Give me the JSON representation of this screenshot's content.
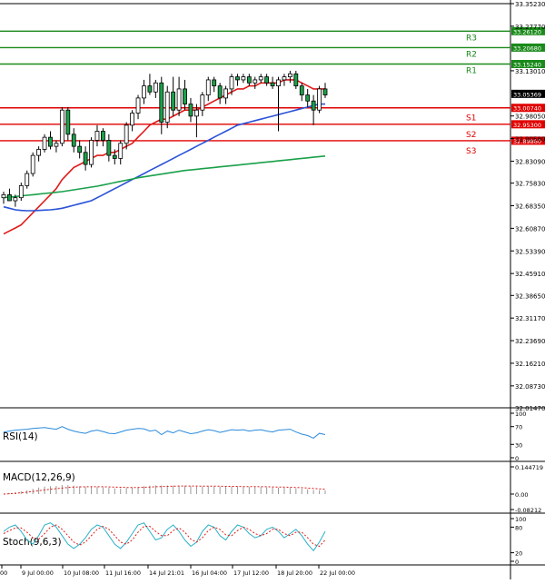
{
  "chart_data": {
    "type": "candlestick",
    "instrument_hint": "",
    "price_axis": {
      "range": [
        32.0147,
        33.3523
      ],
      "tick_labels": [
        "33.35230",
        "33.27770",
        "33.13010",
        "32.98050",
        "32.90580",
        "32.83090",
        "32.75830",
        "32.68350",
        "32.60870",
        "32.53390",
        "32.45910",
        "32.38650",
        "32.31170",
        "32.23690",
        "32.16210",
        "32.08730",
        "32.01470"
      ],
      "tick_values": [
        33.3523,
        33.2777,
        33.1301,
        32.9805,
        32.9058,
        32.8309,
        32.7583,
        32.6835,
        32.6087,
        32.5339,
        32.4591,
        32.3865,
        32.3117,
        32.2369,
        32.1621,
        32.0873,
        32.0147
      ],
      "current_price": {
        "label": "33.05369",
        "value": 33.05369
      }
    },
    "time_axis": {
      "labels": [
        "00",
        "9 Jul 00:00",
        "10 Jul 08:00",
        "11 Jul 16:00",
        "14 Jul 21:01",
        "16 Jul 04:00",
        "17 Jul 12:00",
        "18 Jul 20:00",
        "22 Jul 00:00"
      ]
    },
    "levels": [
      {
        "name": "R3",
        "value": 33.2612,
        "label": "33.26120",
        "kind": "resistance",
        "color": "#1a8a1a"
      },
      {
        "name": "R2",
        "value": 33.2068,
        "label": "33.20680",
        "kind": "resistance",
        "color": "#1a8a1a"
      },
      {
        "name": "R1",
        "value": 33.1524,
        "label": "33.15240",
        "kind": "resistance",
        "color": "#1a8a1a"
      },
      {
        "name": "S1",
        "value": 33.0074,
        "label": "33.00740",
        "kind": "support",
        "color": "#e00000"
      },
      {
        "name": "S2",
        "value": 32.953,
        "label": "32.95300",
        "kind": "support",
        "color": "#e00000"
      },
      {
        "name": "S3",
        "value": 32.8986,
        "label": "32.89860",
        "kind": "support",
        "color": "#e00000"
      }
    ],
    "candles": [
      [
        32.71,
        32.73,
        32.69,
        32.72
      ],
      [
        32.72,
        32.74,
        32.7,
        32.7
      ],
      [
        32.7,
        32.72,
        32.68,
        32.71
      ],
      [
        32.71,
        32.76,
        32.7,
        32.75
      ],
      [
        32.75,
        32.8,
        32.74,
        32.79
      ],
      [
        32.79,
        32.86,
        32.78,
        32.85
      ],
      [
        32.85,
        32.88,
        32.83,
        32.87
      ],
      [
        32.87,
        32.92,
        32.86,
        32.91
      ],
      [
        32.91,
        32.93,
        32.87,
        32.88
      ],
      [
        32.88,
        32.9,
        32.86,
        32.89
      ],
      [
        32.89,
        33.01,
        32.88,
        33.0
      ],
      [
        33.0,
        33.01,
        32.9,
        32.92
      ],
      [
        32.92,
        32.94,
        32.86,
        32.88
      ],
      [
        32.88,
        32.9,
        32.84,
        32.86
      ],
      [
        32.86,
        32.88,
        32.8,
        32.82
      ],
      [
        32.82,
        32.91,
        32.81,
        32.9
      ],
      [
        32.9,
        32.95,
        32.88,
        32.93
      ],
      [
        32.93,
        32.94,
        32.88,
        32.9
      ],
      [
        32.9,
        32.92,
        32.83,
        32.85
      ],
      [
        32.85,
        32.87,
        32.82,
        32.84
      ],
      [
        32.84,
        32.9,
        32.82,
        32.89
      ],
      [
        32.89,
        32.96,
        32.87,
        32.95
      ],
      [
        32.95,
        33.0,
        32.93,
        32.99
      ],
      [
        32.99,
        33.05,
        32.97,
        33.04
      ],
      [
        33.04,
        33.1,
        33.02,
        33.08
      ],
      [
        33.08,
        33.12,
        33.05,
        33.06
      ],
      [
        33.06,
        33.1,
        33.04,
        33.09
      ],
      [
        33.09,
        33.11,
        32.92,
        32.96
      ],
      [
        32.96,
        33.08,
        32.94,
        33.06
      ],
      [
        33.06,
        33.11,
        32.98,
        33.0
      ],
      [
        33.0,
        33.11,
        32.98,
        33.07
      ],
      [
        33.07,
        33.1,
        33.0,
        33.02
      ],
      [
        33.02,
        33.04,
        32.96,
        32.98
      ],
      [
        32.98,
        33.02,
        32.91,
        33.0
      ],
      [
        33.0,
        33.06,
        32.98,
        33.05
      ],
      [
        33.05,
        33.11,
        33.03,
        33.1
      ],
      [
        33.1,
        33.11,
        33.06,
        33.08
      ],
      [
        33.08,
        33.09,
        33.02,
        33.04
      ],
      [
        33.04,
        33.08,
        33.02,
        33.07
      ],
      [
        33.07,
        33.12,
        33.05,
        33.11
      ],
      [
        33.11,
        33.12,
        33.08,
        33.1
      ],
      [
        33.1,
        33.12,
        33.09,
        33.11
      ],
      [
        33.11,
        33.12,
        33.08,
        33.09
      ],
      [
        33.09,
        33.11,
        33.07,
        33.1
      ],
      [
        33.1,
        33.12,
        33.09,
        33.11
      ],
      [
        33.11,
        33.12,
        33.08,
        33.09
      ],
      [
        33.09,
        33.11,
        33.07,
        33.08
      ],
      [
        33.08,
        33.11,
        32.93,
        33.1
      ],
      [
        33.1,
        33.12,
        33.08,
        33.11
      ],
      [
        33.11,
        33.13,
        33.09,
        33.12
      ],
      [
        33.12,
        33.13,
        33.07,
        33.08
      ],
      [
        33.08,
        33.09,
        33.03,
        33.05
      ],
      [
        33.05,
        33.07,
        33.01,
        33.03
      ],
      [
        33.03,
        33.05,
        32.95,
        33.0
      ],
      [
        33.0,
        33.08,
        32.99,
        33.07
      ],
      [
        33.07,
        33.09,
        33.04,
        33.05
      ]
    ],
    "moving_averages": [
      {
        "color": "#e01a1a",
        "values": [
          32.59,
          32.6,
          32.61,
          32.62,
          32.64,
          32.66,
          32.68,
          32.7,
          32.72,
          32.74,
          32.77,
          32.79,
          32.81,
          32.82,
          32.83,
          32.84,
          32.85,
          32.85,
          32.86,
          32.86,
          32.87,
          32.88,
          32.89,
          32.91,
          32.93,
          32.95,
          32.96,
          32.97,
          32.97,
          32.98,
          32.99,
          33.0,
          33.0,
          33.0,
          33.01,
          33.02,
          33.03,
          33.04,
          33.05,
          33.06,
          33.07,
          33.07,
          33.08,
          33.08,
          33.09,
          33.09,
          33.09,
          33.09,
          33.1,
          33.1,
          33.1,
          33.09,
          33.08,
          33.07,
          33.07,
          33.07
        ]
      },
      {
        "color": "#2a52d8",
        "values": [
          32.68,
          32.675,
          32.67,
          32.668,
          32.667,
          32.667,
          32.668,
          32.669,
          32.67,
          32.672,
          32.675,
          32.68,
          32.685,
          32.69,
          32.695,
          32.7,
          32.71,
          32.72,
          32.73,
          32.74,
          32.75,
          32.76,
          32.77,
          32.78,
          32.79,
          32.8,
          32.81,
          32.82,
          32.83,
          32.84,
          32.85,
          32.86,
          32.87,
          32.88,
          32.89,
          32.9,
          32.91,
          32.92,
          32.93,
          32.94,
          32.95,
          32.955,
          32.96,
          32.965,
          32.97,
          32.975,
          32.98,
          32.985,
          32.99,
          32.995,
          33.0,
          33.005,
          33.01,
          33.015,
          33.02,
          33.02
        ]
      },
      {
        "color": "#1aa04a",
        "values": [
          32.71,
          32.712,
          32.714,
          32.716,
          32.718,
          32.72,
          32.722,
          32.724,
          32.726,
          32.728,
          32.73,
          32.733,
          32.736,
          32.739,
          32.742,
          32.745,
          32.748,
          32.752,
          32.756,
          32.76,
          32.764,
          32.768,
          32.772,
          32.776,
          32.779,
          32.782,
          32.785,
          32.788,
          32.791,
          32.794,
          32.797,
          32.8,
          32.802,
          32.804,
          32.806,
          32.808,
          32.81,
          32.812,
          32.814,
          32.816,
          32.818,
          32.82,
          32.822,
          32.824,
          32.826,
          32.828,
          32.83,
          32.832,
          32.834,
          32.836,
          32.838,
          32.84,
          32.842,
          32.844,
          32.846,
          32.848
        ]
      }
    ],
    "indicators": [
      {
        "name": "RSI(14)",
        "ticks": [
          "100",
          "70",
          "30",
          "0"
        ],
        "tick_values": [
          100,
          70,
          30,
          0
        ],
        "range": [
          0,
          100
        ],
        "values": [
          58,
          60,
          62,
          63,
          64,
          66,
          67,
          68,
          66,
          64,
          70,
          64,
          60,
          57,
          55,
          60,
          62,
          59,
          55,
          54,
          58,
          62,
          64,
          66,
          65,
          60,
          62,
          52,
          60,
          56,
          62,
          58,
          54,
          56,
          60,
          63,
          61,
          57,
          60,
          63,
          62,
          63,
          60,
          62,
          63,
          60,
          58,
          62,
          63,
          64,
          58,
          53,
          50,
          44,
          55,
          52
        ]
      },
      {
        "name": "MACD(12,26,9)",
        "ticks": [
          "0.144719",
          "0.00",
          "-0.08212"
        ],
        "tick_values": [
          0.144719,
          0,
          -0.08212
        ],
        "range": [
          -0.08212,
          0.144719
        ],
        "histogram": [
          0.0,
          0.005,
          0.01,
          0.015,
          0.02,
          0.028,
          0.035,
          0.04,
          0.042,
          0.043,
          0.048,
          0.047,
          0.045,
          0.042,
          0.038,
          0.038,
          0.038,
          0.036,
          0.033,
          0.03,
          0.03,
          0.032,
          0.035,
          0.038,
          0.042,
          0.045,
          0.047,
          0.046,
          0.046,
          0.045,
          0.045,
          0.044,
          0.042,
          0.04,
          0.04,
          0.041,
          0.041,
          0.04,
          0.039,
          0.039,
          0.039,
          0.039,
          0.038,
          0.038,
          0.037,
          0.036,
          0.035,
          0.034,
          0.034,
          0.033,
          0.031,
          0.029,
          0.026,
          0.022,
          0.021,
          0.019
        ],
        "signal": [
          0.0,
          0.002,
          0.004,
          0.007,
          0.01,
          0.014,
          0.018,
          0.022,
          0.026,
          0.029,
          0.032,
          0.035,
          0.037,
          0.038,
          0.039,
          0.039,
          0.039,
          0.039,
          0.038,
          0.037,
          0.036,
          0.035,
          0.035,
          0.035,
          0.036,
          0.037,
          0.039,
          0.04,
          0.041,
          0.042,
          0.043,
          0.043,
          0.043,
          0.043,
          0.042,
          0.042,
          0.042,
          0.042,
          0.041,
          0.041,
          0.041,
          0.04,
          0.04,
          0.04,
          0.039,
          0.039,
          0.038,
          0.037,
          0.037,
          0.036,
          0.035,
          0.034,
          0.032,
          0.03,
          0.028,
          0.026
        ]
      },
      {
        "name": "Stoch(9,6,3)",
        "ticks": [
          "100",
          "80",
          "20",
          "0"
        ],
        "tick_values": [
          100,
          80,
          20,
          0
        ],
        "range": [
          0,
          100
        ],
        "k": [
          70,
          80,
          85,
          70,
          50,
          40,
          60,
          85,
          90,
          80,
          60,
          40,
          30,
          40,
          55,
          75,
          85,
          80,
          60,
          40,
          30,
          45,
          65,
          85,
          90,
          70,
          50,
          55,
          75,
          85,
          70,
          50,
          35,
          45,
          70,
          85,
          80,
          60,
          50,
          70,
          85,
          80,
          65,
          55,
          60,
          75,
          80,
          70,
          55,
          65,
          75,
          60,
          40,
          25,
          45,
          70
        ],
        "d": [
          65,
          72,
          78,
          78,
          68,
          55,
          52,
          65,
          80,
          85,
          75,
          60,
          45,
          38,
          45,
          60,
          75,
          82,
          75,
          60,
          45,
          40,
          50,
          68,
          82,
          82,
          70,
          60,
          60,
          72,
          78,
          68,
          52,
          45,
          55,
          72,
          80,
          75,
          62,
          60,
          72,
          80,
          75,
          65,
          60,
          65,
          75,
          75,
          65,
          60,
          68,
          68,
          55,
          40,
          35,
          50
        ]
      }
    ]
  }
}
